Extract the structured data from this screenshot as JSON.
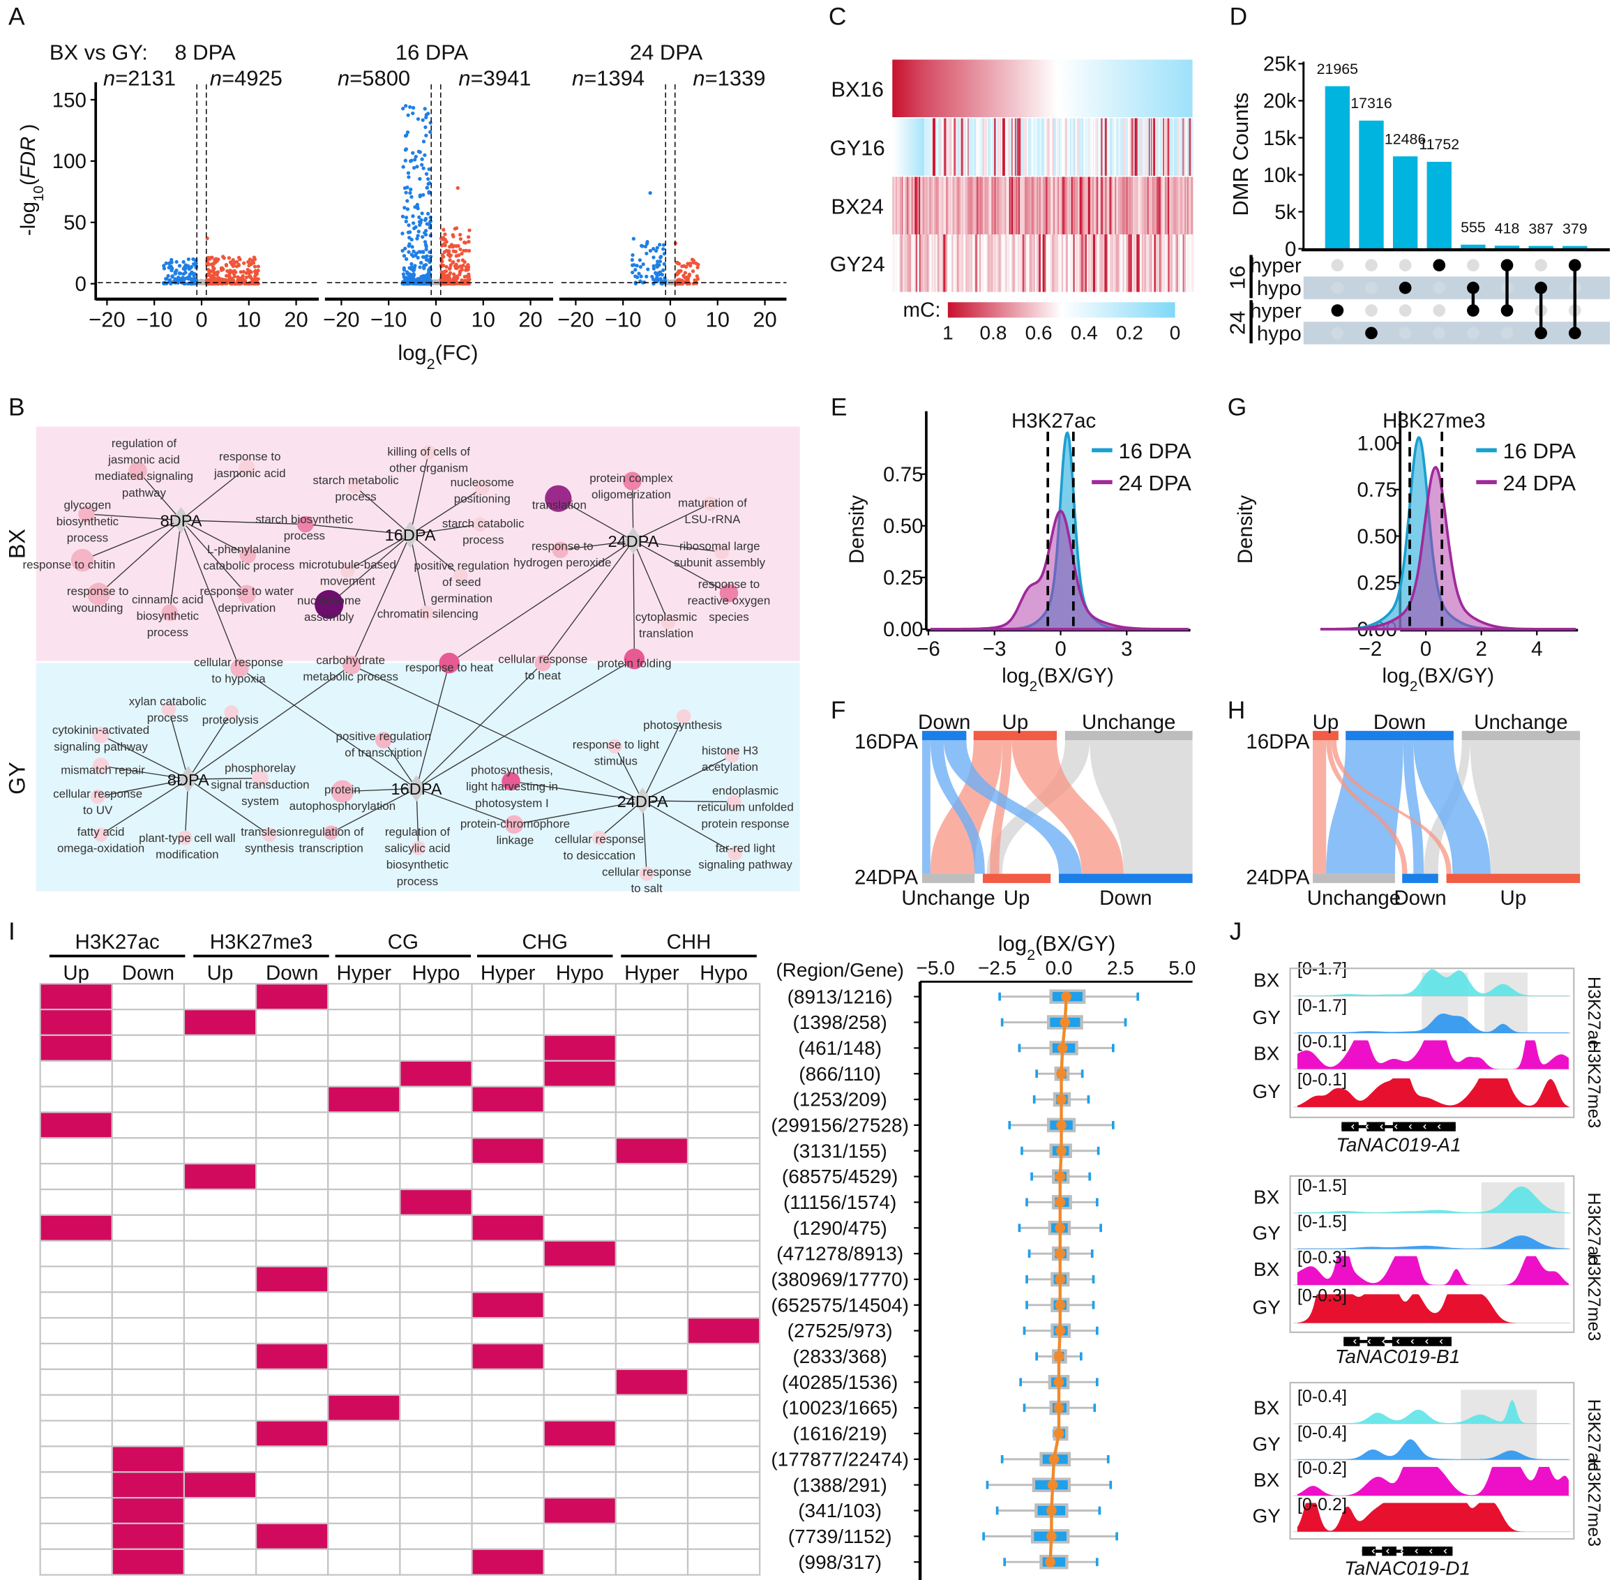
{
  "panel_letters": {
    "A": "A",
    "B": "B",
    "C": "C",
    "D": "D",
    "E": "E",
    "F": "F",
    "G": "G",
    "H": "H",
    "I": "I",
    "J": "J"
  },
  "chart_data": [
    {
      "id": "volcano",
      "type": "scatter",
      "title_prefix": "BX vs GY:",
      "facets": [
        {
          "title": "8 DPA",
          "n_down": "n=2131",
          "n_up": "n=4925",
          "count_down": 2131,
          "count_up": 4925,
          "max_down": 20,
          "max_up": 37
        },
        {
          "title": "16 DPA",
          "n_down": "n=5800",
          "n_up": "n=3941",
          "count_down": 5800,
          "count_up": 3941,
          "max_down": 145,
          "max_up": 78
        },
        {
          "title": "24 DPA",
          "n_down": "n=1394",
          "n_up": "n=1339",
          "count_down": 1394,
          "count_up": 1339,
          "max_down": 74,
          "max_up": 33
        }
      ],
      "xlabel": {
        "base": "log",
        "sub": "2",
        "rest": "(FC)"
      },
      "ylabel": {
        "base": "-log",
        "sub": "10",
        "open": "(",
        "italic": "FDR",
        "close": " )"
      },
      "xticks": [
        "−20",
        "−10",
        "0",
        "10",
        "20"
      ],
      "xtick_values": [
        -20,
        -10,
        0,
        10,
        20
      ],
      "yticks": [
        "0",
        "50",
        "100",
        "150"
      ],
      "ytick_values": [
        0,
        50,
        100,
        150
      ],
      "xlim": [
        -23,
        23
      ],
      "ylim": [
        0,
        175
      ],
      "fc_threshold": 1,
      "colors": {
        "down": "#1f7fe6",
        "up": "#f0553a",
        "ns": "#bdbdbd"
      }
    },
    {
      "id": "methylation_heatmap",
      "type": "heatmap",
      "rows": [
        "BX16",
        "GY16",
        "BX24",
        "GY24"
      ],
      "legend_label": "mC:",
      "legend_ticks": [
        "1",
        "0.8",
        "0.6",
        "0.4",
        "0.2",
        "0"
      ],
      "legend_values": [
        1,
        0.8,
        0.6,
        0.4,
        0.2,
        0
      ],
      "colors": {
        "high": "#c8102e",
        "mid": "#ffffff",
        "low": "#80d8f8"
      }
    },
    {
      "id": "dmr_upset",
      "type": "bar",
      "ylabel": "DMR Counts",
      "yticks": [
        "0",
        "5k",
        "10k",
        "15k",
        "20k",
        "25k"
      ],
      "ytick_values": [
        0,
        5000,
        10000,
        15000,
        20000,
        25000
      ],
      "values": [
        21965,
        17316,
        12486,
        11752,
        555,
        418,
        387,
        379
      ],
      "value_labels": [
        "21965",
        "17316",
        "12486",
        "11752",
        "555",
        "418",
        "387",
        "379"
      ],
      "set_groups": [
        {
          "label": "16",
          "rows": [
            "hyper",
            "hypo"
          ]
        },
        {
          "label": "24",
          "rows": [
            "hyper",
            "hypo"
          ]
        }
      ],
      "membership": [
        [
          2
        ],
        [
          3
        ],
        [
          1
        ],
        [
          0
        ],
        [
          1,
          2
        ],
        [
          0,
          2
        ],
        [
          1,
          3
        ],
        [
          0,
          3
        ]
      ],
      "bar_color": "#00b4e0"
    },
    {
      "id": "density_h3k27ac",
      "type": "area",
      "title": "H3K27ac",
      "ylabel": "Density",
      "xlabel": {
        "base": "log",
        "sub": "2",
        "rest": "(BX/GY)"
      },
      "xticks": [
        "−6",
        "−3",
        "0",
        "3"
      ],
      "xtick_values": [
        -6,
        -3,
        0,
        3
      ],
      "yticks": [
        "0.00",
        "0.25",
        "0.50",
        "0.75"
      ],
      "ytick_values": [
        0,
        0.25,
        0.5,
        0.75
      ],
      "thresholds": [
        -0.58,
        0.58
      ],
      "series": [
        {
          "name": "16 DPA",
          "mode": 0.3,
          "peak": 0.95,
          "spread": 0.3,
          "color": "#1a9fd0"
        },
        {
          "name": "24 DPA",
          "mode": 0.0,
          "peak": 0.57,
          "spread": 0.5,
          "shoulder_at": -1.4,
          "shoulder_peak": 0.14,
          "color": "#a0299a"
        }
      ]
    },
    {
      "id": "density_h3k27me3",
      "type": "area",
      "title": "H3K27me3",
      "ylabel": "Density",
      "xlabel": {
        "base": "log",
        "sub": "2",
        "rest": "(BX/GY)"
      },
      "xticks": [
        "−2",
        "0",
        "2",
        "4"
      ],
      "xtick_values": [
        -2,
        0,
        2,
        4
      ],
      "yticks": [
        "0.00",
        "0.25",
        "0.50",
        "0.75",
        "1.00"
      ],
      "ytick_values": [
        0,
        0.25,
        0.5,
        0.75,
        1.0
      ],
      "thresholds": [
        -0.58,
        0.58
      ],
      "series": [
        {
          "name": "16 DPA",
          "mode": -0.25,
          "peak": 1.03,
          "spread": 0.32,
          "color": "#1a9fd0"
        },
        {
          "name": "24 DPA",
          "mode": 0.35,
          "peak": 0.87,
          "spread": 0.38,
          "color": "#a0299a"
        }
      ]
    },
    {
      "id": "sankey_h3k27ac",
      "type": "sankey",
      "stages": [
        "16DPA",
        "24DPA"
      ],
      "top_nodes": [
        "Down",
        "Up",
        "Unchange"
      ],
      "bottom_nodes": [
        "Unchange",
        "Up",
        "Down"
      ]
    },
    {
      "id": "sankey_h3k27me3",
      "type": "sankey",
      "stages": [
        "16DPA",
        "24DPA"
      ],
      "top_nodes": [
        "Up",
        "Down",
        "Unchange"
      ],
      "bottom_nodes": [
        "Unchange",
        "Down",
        "Up"
      ]
    },
    {
      "id": "combination_boxplot",
      "type": "table",
      "groups": [
        "H3K27ac",
        "H3K27me3",
        "CG",
        "CHG",
        "CHH"
      ],
      "subheaders": [
        "Up",
        "Down",
        "Up",
        "Down",
        "Hyper",
        "Hypo",
        "Hyper",
        "Hypo",
        "Hyper",
        "Hypo"
      ],
      "row_header": "(Region/Gene)",
      "box_title": {
        "base": "log",
        "sub": "2",
        "rest": "(BX/GY)"
      },
      "xticks": [
        "−5.0",
        "−2.5",
        "0.0",
        "2.5",
        "5.0"
      ],
      "xtick_values": [
        -5,
        -2.5,
        0,
        2.5,
        5
      ],
      "fill_color": "#d20a5e",
      "rows": [
        {
          "label": "(8913/1216)",
          "marks": [
            0,
            3
          ],
          "box": [
            -2.4,
            -0.3,
            0.3,
            1.0,
            3.2
          ]
        },
        {
          "label": "(1398/258)",
          "marks": [
            0,
            2
          ],
          "box": [
            -2.3,
            -0.4,
            0.25,
            0.9,
            2.7
          ]
        },
        {
          "label": "(461/148)",
          "marks": [
            0,
            7
          ],
          "box": [
            -1.6,
            -0.3,
            0.15,
            0.7,
            2.2
          ]
        },
        {
          "label": "(866/110)",
          "marks": [
            5,
            7
          ],
          "box": [
            -0.9,
            -0.1,
            0.1,
            0.35,
            0.95
          ]
        },
        {
          "label": "(1253/209)",
          "marks": [
            4,
            6
          ],
          "box": [
            -1.0,
            -0.15,
            0.1,
            0.4,
            1.2
          ]
        },
        {
          "label": "(299156/27528)",
          "marks": [
            0
          ],
          "box": [
            -2.0,
            -0.4,
            0.1,
            0.6,
            2.2
          ]
        },
        {
          "label": "(3131/155)",
          "marks": [
            6,
            8
          ],
          "box": [
            -1.5,
            -0.3,
            0.1,
            0.45,
            1.6
          ]
        },
        {
          "label": "(68575/4529)",
          "marks": [
            2
          ],
          "box": [
            -1.1,
            -0.2,
            0.05,
            0.35,
            1.25
          ]
        },
        {
          "label": "(11156/1574)",
          "marks": [
            5
          ],
          "box": [
            -1.3,
            -0.2,
            0.05,
            0.45,
            1.55
          ]
        },
        {
          "label": "(1290/475)",
          "marks": [
            0,
            6
          ],
          "box": [
            -1.6,
            -0.35,
            0.05,
            0.4,
            1.7
          ]
        },
        {
          "label": "(471278/8913)",
          "marks": [
            7
          ],
          "box": [
            -1.2,
            -0.2,
            0.05,
            0.35,
            1.35
          ]
        },
        {
          "label": "(380969/17770)",
          "marks": [
            3
          ],
          "box": [
            -1.3,
            -0.25,
            0.05,
            0.35,
            1.4
          ]
        },
        {
          "label": "(652575/14504)",
          "marks": [
            6
          ],
          "box": [
            -1.3,
            -0.25,
            0.05,
            0.35,
            1.4
          ]
        },
        {
          "label": "(27525/973)",
          "marks": [
            9
          ],
          "box": [
            -1.4,
            -0.25,
            0.05,
            0.4,
            1.55
          ]
        },
        {
          "label": "(2833/368)",
          "marks": [
            3,
            6
          ],
          "box": [
            -0.9,
            -0.2,
            0.0,
            0.25,
            0.9
          ]
        },
        {
          "label": "(40285/1536)",
          "marks": [
            8
          ],
          "box": [
            -1.55,
            -0.35,
            0.0,
            0.35,
            1.55
          ]
        },
        {
          "label": "(10023/1665)",
          "marks": [
            4
          ],
          "box": [
            -1.4,
            -0.3,
            0.0,
            0.35,
            1.45
          ]
        },
        {
          "label": "(1616/219)",
          "marks": [
            3,
            7
          ],
          "box": [
            -0.2,
            -0.15,
            0.0,
            0.3,
            0.3
          ]
        },
        {
          "label": "(177877/22474)",
          "marks": [
            1
          ],
          "box": [
            -2.3,
            -0.7,
            -0.2,
            0.4,
            2.0
          ]
        },
        {
          "label": "(1388/291)",
          "marks": [
            1,
            2
          ],
          "box": [
            -2.9,
            -1.0,
            -0.25,
            0.4,
            2.1
          ]
        },
        {
          "label": "(341/103)",
          "marks": [
            1,
            7
          ],
          "box": [
            -2.5,
            -0.9,
            -0.3,
            0.3,
            1.65
          ]
        },
        {
          "label": "(7739/1152)",
          "marks": [
            1,
            3
          ],
          "box": [
            -3.05,
            -1.05,
            -0.3,
            0.35,
            2.35
          ]
        },
        {
          "label": "(998/317)",
          "marks": [
            1,
            6
          ],
          "box": [
            -2.2,
            -0.7,
            -0.35,
            0.3,
            1.55
          ]
        }
      ]
    },
    {
      "id": "genome_tracks",
      "type": "area",
      "marks": [
        "H3K27ac",
        "H3K27me3"
      ],
      "genes": [
        {
          "name": "TaNAC019-A1",
          "tracks": [
            {
              "sample": "BX",
              "range": "[0-1.7]"
            },
            {
              "sample": "GY",
              "range": "[0-1.7]"
            },
            {
              "sample": "BX",
              "range": "[0-0.1]"
            },
            {
              "sample": "GY",
              "range": "[0-0.1]"
            }
          ]
        },
        {
          "name": "TaNAC019-B1",
          "tracks": [
            {
              "sample": "BX",
              "range": "[0-1.5]"
            },
            {
              "sample": "GY",
              "range": "[0-1.5]"
            },
            {
              "sample": "BX",
              "range": "[0-0.3]"
            },
            {
              "sample": "GY",
              "range": "[0-0.3]"
            }
          ]
        },
        {
          "name": "TaNAC019-D1",
          "tracks": [
            {
              "sample": "BX",
              "range": "[0-0.4]"
            },
            {
              "sample": "GY",
              "range": "[0-0.4]"
            },
            {
              "sample": "BX",
              "range": "[0-0.2]"
            },
            {
              "sample": "GY",
              "range": "[0-0.2]"
            }
          ]
        }
      ],
      "colors": {
        "BX_ac": "#55e3e6",
        "GY_ac": "#1e8ff0",
        "BX_me3": "#ee10c8",
        "GY_me3": "#e8102f"
      }
    }
  ],
  "network": {
    "groups": [
      "BX",
      "GY"
    ],
    "hubs": [
      "8DPA",
      "16DPA",
      "24DPA"
    ],
    "terms": [
      [
        "regulation of",
        "jasmonic acid",
        "mediated signaling",
        "pathway"
      ],
      [
        "response to",
        "jasmonic acid"
      ],
      [
        "glycogen",
        "biosynthetic",
        "process"
      ],
      [
        "response to chitin"
      ],
      [
        "response to",
        "wounding"
      ],
      [
        "cinnamic acid",
        "biosynthetic",
        "process"
      ],
      [
        "L-phenylalanine",
        "catabolic process"
      ],
      [
        "response to water",
        "deprivation"
      ],
      [
        "starch biosynthetic",
        "process"
      ],
      [
        "starch metabolic",
        "process"
      ],
      [
        "killing of cells of",
        "other organism"
      ],
      [
        "nucleosome",
        "positioning"
      ],
      [
        "starch catabolic",
        "process"
      ],
      [
        "microtubule-based",
        "movement"
      ],
      [
        "nucleosome",
        "assembly"
      ],
      [
        "positive regulation",
        "of seed",
        "germination"
      ],
      [
        "chromatin silencing"
      ],
      [
        "translation"
      ],
      [
        "protein complex",
        "oligomerization"
      ],
      [
        "maturation of",
        "LSU-rRNA"
      ],
      [
        "response to",
        "hydrogen peroxide"
      ],
      [
        "ribosomal large",
        "subunit assembly"
      ],
      [
        "response to",
        "reactive oxygen",
        "species"
      ],
      [
        "cytoplasmic",
        "translation"
      ],
      [
        "cellular response",
        "to hypoxia"
      ],
      [
        "carbohydrate",
        "metabolic process"
      ],
      [
        "response to heat"
      ],
      [
        "cellular response",
        "to heat"
      ],
      [
        "protein folding"
      ],
      [
        "xylan catabolic",
        "process"
      ],
      [
        "proteolysis"
      ],
      [
        "cytokinin-activated",
        "signaling pathway"
      ],
      [
        "mismatch repair"
      ],
      [
        "cellular response",
        "to UV"
      ],
      [
        "fatty acid",
        "omega-oxidation"
      ],
      [
        "plant-type cell wall",
        "modification"
      ],
      [
        "phosphorelay",
        "signal transduction",
        "system"
      ],
      [
        "translesion",
        "synthesis"
      ],
      [
        "positive regulation",
        "of transcription"
      ],
      [
        "protein",
        "autophosphorylation"
      ],
      [
        "regulation of",
        "transcription"
      ],
      [
        "regulation of",
        "salicylic acid",
        "biosynthetic",
        "process"
      ],
      [
        "photosynthesis,",
        "light harvesting in",
        "photosystem I"
      ],
      [
        "protein-chromophore",
        "linkage"
      ],
      [
        "response to light",
        "stimulus"
      ],
      [
        "photosynthesis"
      ],
      [
        "histone H3",
        "acetylation"
      ],
      [
        "endoplasmic",
        "reticulum unfolded",
        "protein response"
      ],
      [
        "cellular response",
        "to desiccation"
      ],
      [
        "cellular response",
        "to salt"
      ],
      [
        "far-red light",
        "signaling pathway"
      ]
    ],
    "colors": {
      "bx_bg": "#fae3ee",
      "gy_bg": "#e2f6fd"
    }
  }
}
